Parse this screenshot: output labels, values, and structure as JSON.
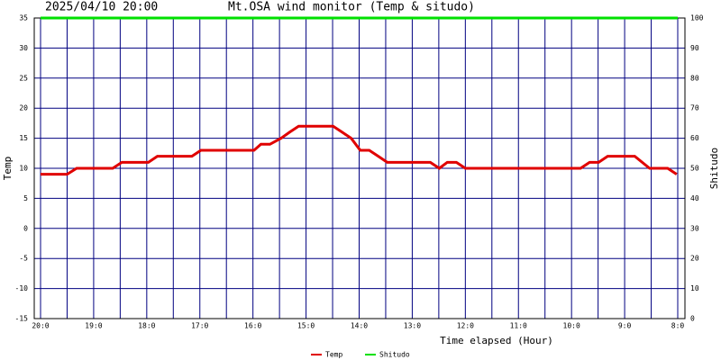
{
  "chart_data": {
    "type": "line",
    "title": "Mt.OSA wind monitor (Temp & situdo)",
    "subtitle": "2025/04/10 20:00",
    "x_label": "Time elapsed (Hour)",
    "y_label": "Temp",
    "y2_label": "Shitudo",
    "xlim": [
      0,
      12
    ],
    "xticks": [
      {
        "value": 0,
        "label": "20:0"
      },
      {
        "value": 1,
        "label": "19:0"
      },
      {
        "value": 2,
        "label": "18:0"
      },
      {
        "value": 3,
        "label": "17:0"
      },
      {
        "value": 4,
        "label": "16:0"
      },
      {
        "value": 5,
        "label": "15:0"
      },
      {
        "value": 6,
        "label": "14:0"
      },
      {
        "value": 7,
        "label": "13:0"
      },
      {
        "value": 8,
        "label": "12:0"
      },
      {
        "value": 9,
        "label": "11:0"
      },
      {
        "value": 10,
        "label": "10:0"
      },
      {
        "value": 11,
        "label": "9:0"
      },
      {
        "value": 12,
        "label": "8:0"
      }
    ],
    "ylim": [
      -15,
      35
    ],
    "yticks": [
      -15,
      -10,
      -5,
      0,
      5,
      10,
      15,
      20,
      25,
      30,
      35
    ],
    "y2lim": [
      0,
      100
    ],
    "y2ticks": [
      0,
      10,
      20,
      30,
      40,
      50,
      60,
      70,
      80,
      90,
      100
    ],
    "grid": true,
    "minor_x_grid": true,
    "legend": "bottom",
    "series": [
      {
        "name": "Temp",
        "color": "#e00000",
        "x": [
          0,
          0.5,
          0.68,
          1.36,
          1.53,
          2.03,
          2.2,
          2.85,
          3.02,
          4.02,
          4.15,
          4.32,
          4.53,
          4.69,
          4.86,
          5.51,
          5.68,
          5.85,
          6.02,
          6.19,
          6.36,
          6.53,
          7.34,
          7.51,
          7.66,
          7.83,
          8.0,
          10.17,
          10.34,
          10.51,
          10.68,
          11.19,
          11.47,
          11.81,
          11.98
        ],
        "values": [
          9,
          9,
          10,
          10,
          11,
          11,
          12,
          12,
          13,
          13,
          14,
          14,
          15,
          16,
          17,
          17,
          16,
          15,
          13,
          13,
          12,
          11,
          11,
          10,
          11,
          11,
          10,
          10,
          11,
          11,
          12,
          12,
          10,
          10,
          9
        ]
      },
      {
        "name": "Shitudo",
        "color": "#00e000",
        "axis": "y2",
        "x": [
          0,
          12
        ],
        "values": [
          100,
          100
        ]
      }
    ]
  }
}
